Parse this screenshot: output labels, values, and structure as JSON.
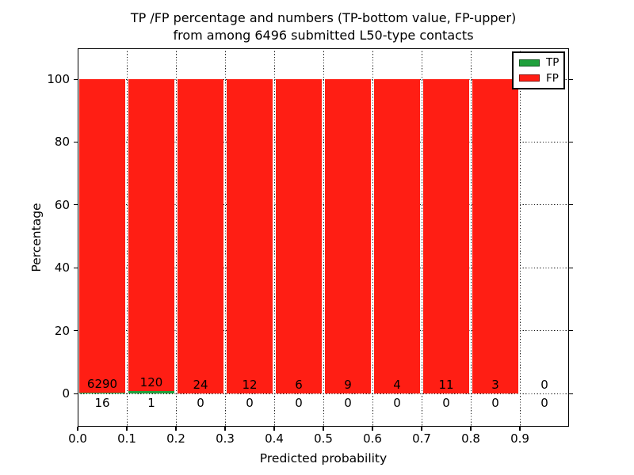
{
  "chart_data": {
    "type": "bar",
    "stacked": true,
    "title_line1": "TP /FP percentage and numbers (TP-bottom value, FP-upper)",
    "title_line2": "from among 6496 submitted L50-type contacts",
    "total_submitted": 6496,
    "xlabel": "Predicted probability",
    "ylabel": "Percentage",
    "xlim": [
      0.0,
      1.0
    ],
    "ylim": [
      -11,
      110
    ],
    "bin_width": 0.1,
    "xtick_labels": [
      "0.0",
      "0.1",
      "0.2",
      "0.3",
      "0.4",
      "0.5",
      "0.6",
      "0.7",
      "0.8",
      "0.9"
    ],
    "ytick_values": [
      0,
      20,
      40,
      60,
      80,
      100
    ],
    "grid": "dotted",
    "categories": [
      "0.0-0.1",
      "0.1-0.2",
      "0.2-0.3",
      "0.3-0.4",
      "0.4-0.5",
      "0.5-0.6",
      "0.6-0.7",
      "0.7-0.8",
      "0.8-0.9",
      "0.9-1.0"
    ],
    "series": [
      {
        "name": "TP",
        "color": "#1fa03c",
        "counts": [
          16,
          1,
          0,
          0,
          0,
          0,
          0,
          0,
          0,
          0
        ]
      },
      {
        "name": "FP",
        "color": "#ff1e14",
        "counts": [
          6290,
          120,
          24,
          12,
          6,
          9,
          4,
          11,
          3,
          0
        ]
      }
    ],
    "legend": {
      "position": "upper right",
      "entries": [
        {
          "label": "TP",
          "color": "#1fa03c"
        },
        {
          "label": "FP",
          "color": "#ff1e14"
        }
      ]
    }
  }
}
